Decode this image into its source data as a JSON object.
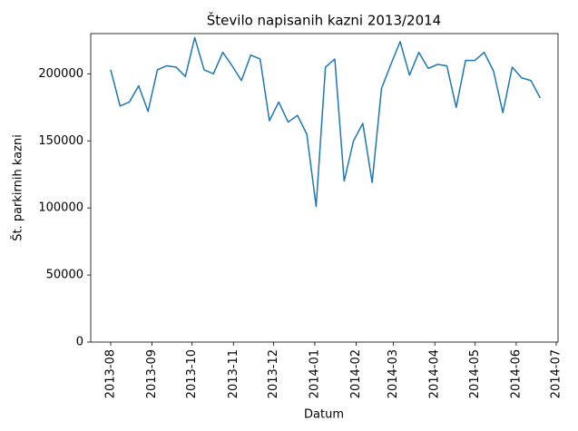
{
  "chart_data": {
    "type": "line",
    "title": "Število napisanih kazni 2013/2014",
    "x_label": "Datum",
    "y_label": "Št. parkirnih kazni",
    "x": [
      2013.5808,
      2013.6,
      2013.6192,
      2013.6383,
      2013.6575,
      2013.6767,
      2013.6959,
      2013.7151,
      2013.7342,
      2013.7534,
      2013.7726,
      2013.7918,
      2013.811,
      2013.8301,
      2013.8493,
      2013.8685,
      2013.8877,
      2013.9068,
      2013.926,
      2013.9452,
      2013.9644,
      2013.9836,
      2014.0027,
      2014.0219,
      2014.0411,
      2014.0603,
      2014.0795,
      2014.0986,
      2014.1178,
      2014.137,
      2014.1562,
      2014.1753,
      2014.1945,
      2014.2137,
      2014.2329,
      2014.2521,
      2014.2712,
      2014.2904,
      2014.3096,
      2014.3288,
      2014.3479,
      2014.3671,
      2014.3863,
      2014.4055,
      2014.4247,
      2014.4438,
      2014.463
    ],
    "series": [
      {
        "color": "#1f77b4",
        "values": [
          203000,
          176000,
          179000,
          191000,
          172000,
          203000,
          206000,
          205000,
          198000,
          227000,
          203000,
          200000,
          216000,
          206000,
          195000,
          214000,
          211000,
          165000,
          179000,
          164000,
          169000,
          155000,
          101000,
          205000,
          211000,
          120000,
          150000,
          163000,
          119000,
          189000,
          207000,
          224000,
          199000,
          216000,
          204000,
          207000,
          206000,
          175000,
          210000,
          210000,
          216000,
          202000,
          171000,
          205000,
          197000,
          195000,
          182000
        ]
      }
    ],
    "xlim": [
      2013.5398,
      2014.4996
    ],
    "xticks": [
      {
        "value": 2013.5808,
        "label": "2013-08"
      },
      {
        "value": 2013.6658,
        "label": "2013-09"
      },
      {
        "value": 2013.7479,
        "label": "2013-10"
      },
      {
        "value": 2013.8329,
        "label": "2013-11"
      },
      {
        "value": 2013.9151,
        "label": "2013-12"
      },
      {
        "value": 2014.0,
        "label": "2014-01"
      },
      {
        "value": 2014.0849,
        "label": "2014-02"
      },
      {
        "value": 2014.1616,
        "label": "2014-03"
      },
      {
        "value": 2014.2466,
        "label": "2014-04"
      },
      {
        "value": 2014.3288,
        "label": "2014-05"
      },
      {
        "value": 2014.4137,
        "label": "2014-06"
      },
      {
        "value": 2014.4959,
        "label": "2014-07"
      }
    ],
    "ylim": [
      0,
      230000
    ],
    "yticks": [
      0,
      50000,
      100000,
      150000,
      200000
    ]
  }
}
